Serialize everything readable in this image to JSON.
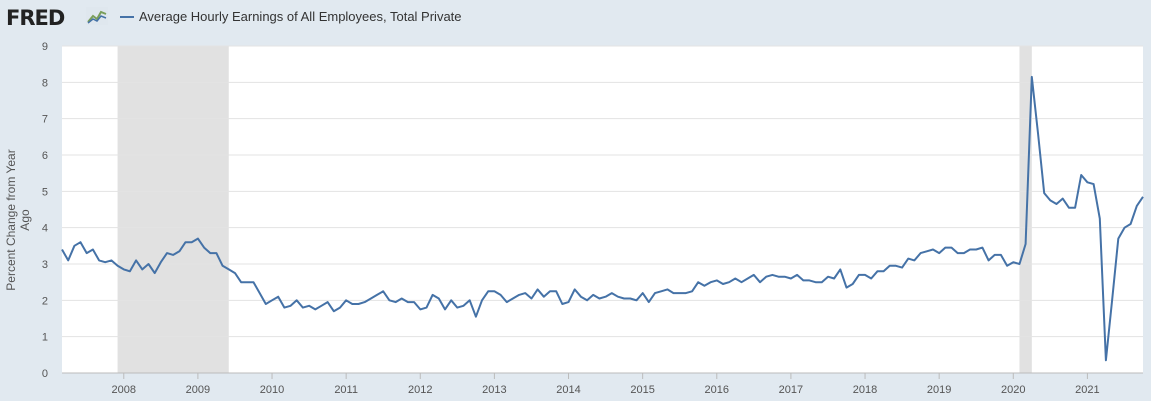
{
  "header": {
    "logo_text": "FRED",
    "logo_icon": "fred-chart-icon",
    "legend_label": "Average Hourly Earnings of All Employees, Total Private",
    "legend_color": "#4572a7"
  },
  "chart_data": {
    "type": "line",
    "title": "",
    "xlabel": "",
    "ylabel": "Percent Change from Year Ago",
    "ylim": [
      0,
      9
    ],
    "yticks": [
      0,
      1,
      2,
      3,
      4,
      5,
      6,
      7,
      8,
      9
    ],
    "xlim": [
      "2007-03",
      "2021-10"
    ],
    "xticks": [
      "2008",
      "2009",
      "2010",
      "2011",
      "2012",
      "2013",
      "2014",
      "2015",
      "2016",
      "2017",
      "2018",
      "2019",
      "2020",
      "2021"
    ],
    "grid": true,
    "recessions": [
      [
        "2007-12",
        "2009-06"
      ],
      [
        "2020-02",
        "2020-04"
      ]
    ],
    "series": [
      {
        "name": "Average Hourly Earnings of All Employees, Total Private",
        "color": "#4572a7",
        "start": "2007-03",
        "frequency": "monthly",
        "values": [
          3.4,
          3.1,
          3.5,
          3.6,
          3.3,
          3.4,
          3.1,
          3.05,
          3.1,
          2.95,
          2.85,
          2.8,
          3.1,
          2.85,
          3.0,
          2.75,
          3.05,
          3.3,
          3.25,
          3.35,
          3.6,
          3.6,
          3.7,
          3.45,
          3.3,
          3.3,
          2.95,
          2.85,
          2.75,
          2.5,
          2.5,
          2.5,
          2.2,
          1.9,
          2.0,
          2.1,
          1.8,
          1.85,
          2.0,
          1.8,
          1.85,
          1.75,
          1.85,
          1.95,
          1.7,
          1.8,
          2.0,
          1.9,
          1.9,
          1.95,
          2.05,
          2.15,
          2.25,
          2.0,
          1.95,
          2.05,
          1.95,
          1.95,
          1.75,
          1.8,
          2.15,
          2.05,
          1.75,
          2.0,
          1.8,
          1.85,
          2.0,
          1.55,
          2.0,
          2.25,
          2.25,
          2.15,
          1.95,
          2.05,
          2.15,
          2.2,
          2.05,
          2.3,
          2.1,
          2.25,
          2.25,
          1.9,
          1.95,
          2.3,
          2.1,
          2.0,
          2.15,
          2.05,
          2.1,
          2.2,
          2.1,
          2.05,
          2.05,
          2.0,
          2.2,
          1.95,
          2.2,
          2.25,
          2.3,
          2.2,
          2.2,
          2.2,
          2.25,
          2.5,
          2.4,
          2.5,
          2.55,
          2.45,
          2.5,
          2.6,
          2.5,
          2.6,
          2.7,
          2.5,
          2.65,
          2.7,
          2.65,
          2.65,
          2.6,
          2.7,
          2.55,
          2.55,
          2.5,
          2.5,
          2.65,
          2.6,
          2.85,
          2.35,
          2.45,
          2.7,
          2.7,
          2.6,
          2.8,
          2.8,
          2.95,
          2.95,
          2.9,
          3.15,
          3.1,
          3.3,
          3.35,
          3.4,
          3.3,
          3.45,
          3.45,
          3.3,
          3.3,
          3.4,
          3.4,
          3.45,
          3.1,
          3.25,
          3.25,
          2.95,
          3.05,
          3.0,
          3.55,
          8.15,
          6.6,
          4.95,
          4.75,
          4.65,
          4.8,
          4.55,
          4.55,
          5.45,
          5.25,
          5.2,
          4.25,
          0.35,
          2.0,
          3.7,
          4.0,
          4.1,
          4.6,
          4.85
        ]
      }
    ]
  }
}
